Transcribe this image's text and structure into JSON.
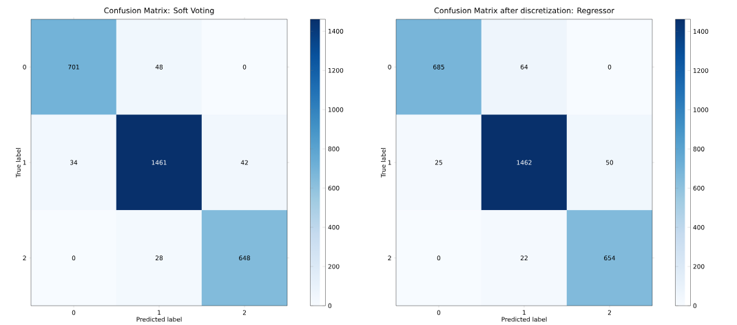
{
  "chart_data": [
    {
      "type": "heatmap",
      "title": "Confusion Matrix: Soft Voting",
      "xlabel": "Predicted label",
      "ylabel": "True label",
      "categories": [
        "0",
        "1",
        "2"
      ],
      "y_categories": [
        "0",
        "1",
        "2"
      ],
      "cells": [
        [
          701,
          48,
          0
        ],
        [
          34,
          1461,
          42
        ],
        [
          0,
          28,
          648
        ]
      ],
      "data_labels": true,
      "clim": [
        0,
        1461
      ],
      "cticks": [
        0,
        200,
        400,
        600,
        800,
        1000,
        1200,
        1400
      ]
    },
    {
      "type": "heatmap",
      "title": "Confusion Matrix after discretization: Regressor",
      "xlabel": "Predicted label",
      "ylabel": "True label",
      "categories": [
        "0",
        "1",
        "2"
      ],
      "y_categories": [
        "0",
        "1",
        "2"
      ],
      "cells": [
        [
          685,
          64,
          0
        ],
        [
          25,
          1462,
          50
        ],
        [
          0,
          22,
          654
        ]
      ],
      "data_labels": true,
      "clim": [
        0,
        1462
      ],
      "cticks": [
        0,
        200,
        400,
        600,
        800,
        1000,
        1200,
        1400
      ]
    }
  ]
}
